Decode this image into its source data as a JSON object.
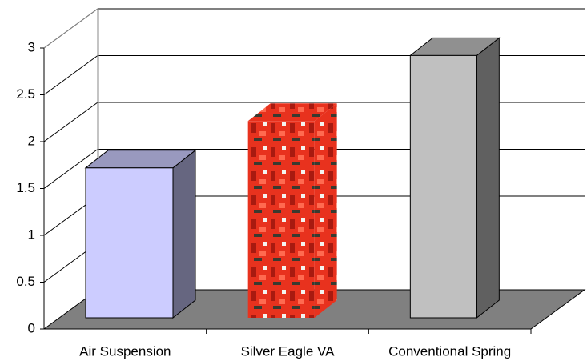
{
  "chart_data": {
    "type": "bar3d",
    "categories": [
      "Air Suspension",
      "Silver Eagle VA",
      "Conventional Spring"
    ],
    "values": [
      1.6,
      2.1,
      2.8
    ],
    "colors": [
      "#ccccff",
      "#ee2a1a",
      "#c0c0c0"
    ],
    "ylim": [
      0,
      3
    ],
    "yticks": [
      0,
      0.5,
      1,
      1.5,
      2,
      2.5,
      3
    ],
    "grid": true
  }
}
